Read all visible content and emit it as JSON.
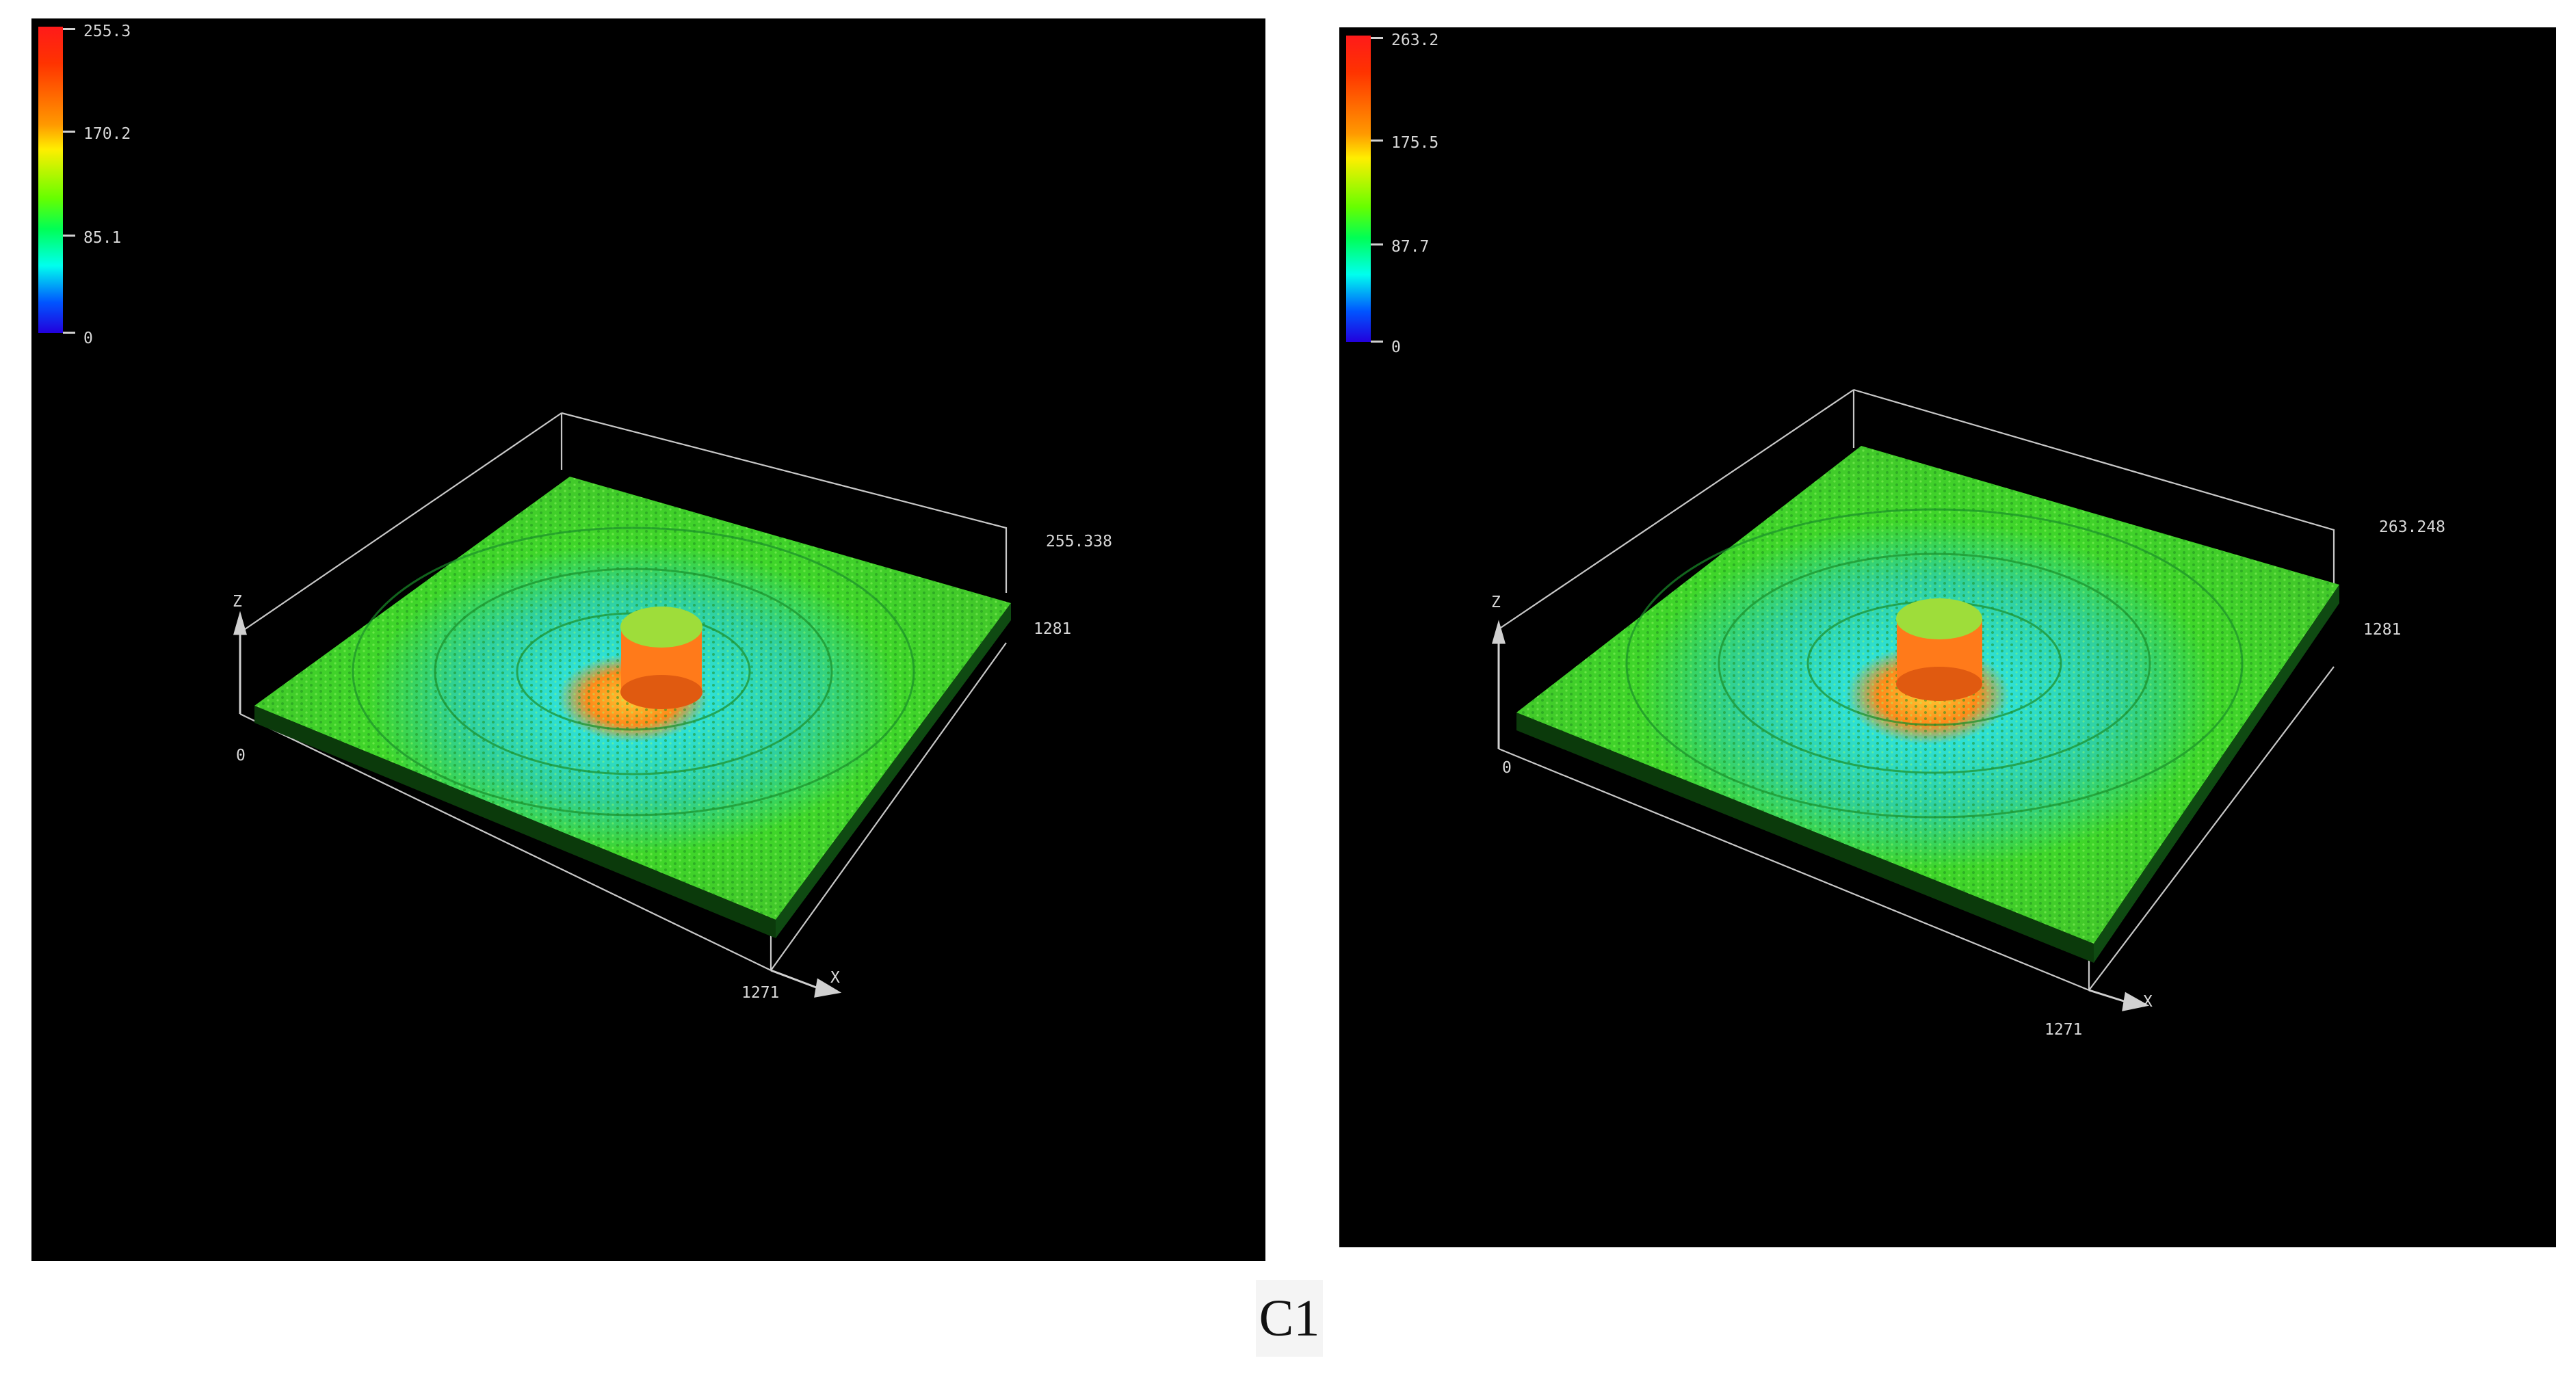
{
  "panels": [
    {
      "scale": {
        "max": "255.3",
        "upper": "170.2",
        "mid": "85.1",
        "min": "0"
      },
      "z_max": "255.338",
      "y_extent": "1281",
      "x_extent": "1271",
      "origin": "0",
      "x_axis": "X",
      "z_axis": "Z"
    },
    {
      "scale": {
        "max": "263.2",
        "upper": "175.5",
        "mid": "87.7",
        "min": "0"
      },
      "z_max": "263.248",
      "y_extent": "1281",
      "x_extent": "1271",
      "origin": "0",
      "x_axis": "X",
      "z_axis": "Z"
    }
  ],
  "caption": "C1",
  "colors": {
    "background": "#000000",
    "surface": "#3fd62a",
    "surface_dark": "#1e9e1e",
    "center_ring": "#28d6c8",
    "peak": "#ff7a1a",
    "frame_lines": "#c8c8c8"
  }
}
